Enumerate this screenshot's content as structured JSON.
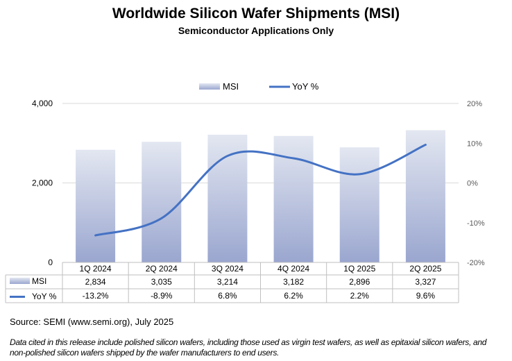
{
  "chart_data": {
    "type": "bar",
    "title": "Worldwide Silicon Wafer Shipments (MSI)",
    "subtitle": "Semiconductor Applications Only",
    "categories": [
      "1Q 2024",
      "2Q 2024",
      "3Q 2024",
      "4Q 2024",
      "1Q 2025",
      "2Q 2025"
    ],
    "series": [
      {
        "name": "MSI",
        "type": "bar",
        "axis": "left",
        "values": [
          2834,
          3035,
          3214,
          3182,
          2896,
          3327
        ],
        "labels": [
          "2,834",
          "3,035",
          "3,214",
          "3,182",
          "2,896",
          "3,327"
        ]
      },
      {
        "name": "YoY %",
        "type": "line",
        "axis": "right",
        "values": [
          -13.2,
          -8.9,
          6.8,
          6.2,
          2.2,
          9.6
        ],
        "labels": [
          "-13.2%",
          "-8.9%",
          "6.8%",
          "6.2%",
          "2.2%",
          "9.6%"
        ]
      }
    ],
    "y_left": {
      "range": [
        0,
        4000
      ],
      "ticks": [
        0,
        2000,
        4000
      ],
      "tick_labels": [
        "0",
        "2,000",
        "4,000"
      ]
    },
    "y_right": {
      "range": [
        -20,
        20
      ],
      "ticks": [
        -20,
        -10,
        0,
        10,
        20
      ],
      "tick_labels": [
        "-20%",
        "-10%",
        "0%",
        "10%",
        "20%"
      ]
    },
    "legend": {
      "position": "top",
      "entries": [
        "MSI",
        "YoY %"
      ]
    },
    "grid": true,
    "data_table": true,
    "colors": {
      "bar_top": "#E3E7F1",
      "bar_bottom": "#9AA6CF",
      "line": "#4472C4",
      "grid": "#D9D9D9",
      "table_border": "#BFBFBF"
    }
  },
  "footer": {
    "source": "Source: SEMI (www.semi.org), July 2025",
    "note": "Data cited in this release include polished silicon wafers, including those used as virgin test wafers, as well as epitaxial silicon wafers, and non-polished silicon wafers shipped by the wafer manufacturers to end users."
  }
}
